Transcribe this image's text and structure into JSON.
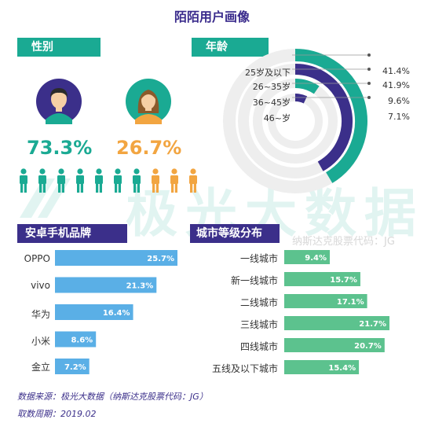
{
  "title": "陌陌用户画像",
  "watermark": {
    "text": "极光大数据",
    "sub": "纳斯达克股票代码：JG"
  },
  "colors": {
    "teal": "#1aaa93",
    "purple": "#3b2f8a",
    "male": "#1aaa93",
    "female": "#f2a541",
    "blue_bar": "#5aafe6",
    "green_bar": "#5cc28e"
  },
  "gender": {
    "tag": "性别",
    "male_pct": "73.3%",
    "female_pct": "26.7%"
  },
  "age": {
    "tag": "年龄",
    "items": [
      {
        "label": "25岁及以下",
        "value": "41.4%"
      },
      {
        "label": "26~35岁",
        "value": "41.9%"
      },
      {
        "label": "36~45岁",
        "value": "9.6%"
      },
      {
        "label": "46~岁",
        "value": "7.1%"
      }
    ]
  },
  "android": {
    "tag": "安卓手机品牌",
    "items": [
      {
        "label": "OPPO",
        "value": "25.7%"
      },
      {
        "label": "vivo",
        "value": "21.3%"
      },
      {
        "label": "华为",
        "value": "16.4%"
      },
      {
        "label": "小米",
        "value": "8.6%"
      },
      {
        "label": "金立",
        "value": "7.2%"
      }
    ]
  },
  "city": {
    "tag": "城市等级分布",
    "items": [
      {
        "label": "一线城市",
        "value": "9.4%"
      },
      {
        "label": "新一线城市",
        "value": "15.7%"
      },
      {
        "label": "二线城市",
        "value": "17.1%"
      },
      {
        "label": "三线城市",
        "value": "21.7%"
      },
      {
        "label": "四线城市",
        "value": "20.7%"
      },
      {
        "label": "五线及以下城市",
        "value": "15.4%"
      }
    ]
  },
  "footer": {
    "source": "数据来源：极光大数据（纳斯达克股票代码：JG）",
    "period": "取数周期：2019.02"
  },
  "chart_data": [
    {
      "type": "bar",
      "title": "性别",
      "categories": [
        "男",
        "女"
      ],
      "values": [
        73.3,
        26.7
      ]
    },
    {
      "type": "pie",
      "title": "年龄",
      "categories": [
        "25岁及以下",
        "26~35岁",
        "36~45岁",
        "46~岁"
      ],
      "values": [
        41.4,
        41.9,
        9.6,
        7.1
      ]
    },
    {
      "type": "bar",
      "title": "安卓手机品牌",
      "categories": [
        "OPPO",
        "vivo",
        "华为",
        "小米",
        "金立"
      ],
      "values": [
        25.7,
        21.3,
        16.4,
        8.6,
        7.2
      ]
    },
    {
      "type": "bar",
      "title": "城市等级分布",
      "categories": [
        "一线城市",
        "新一线城市",
        "二线城市",
        "三线城市",
        "四线城市",
        "五线及以下城市"
      ],
      "values": [
        9.4,
        15.7,
        17.1,
        21.7,
        20.7,
        15.4
      ]
    }
  ]
}
